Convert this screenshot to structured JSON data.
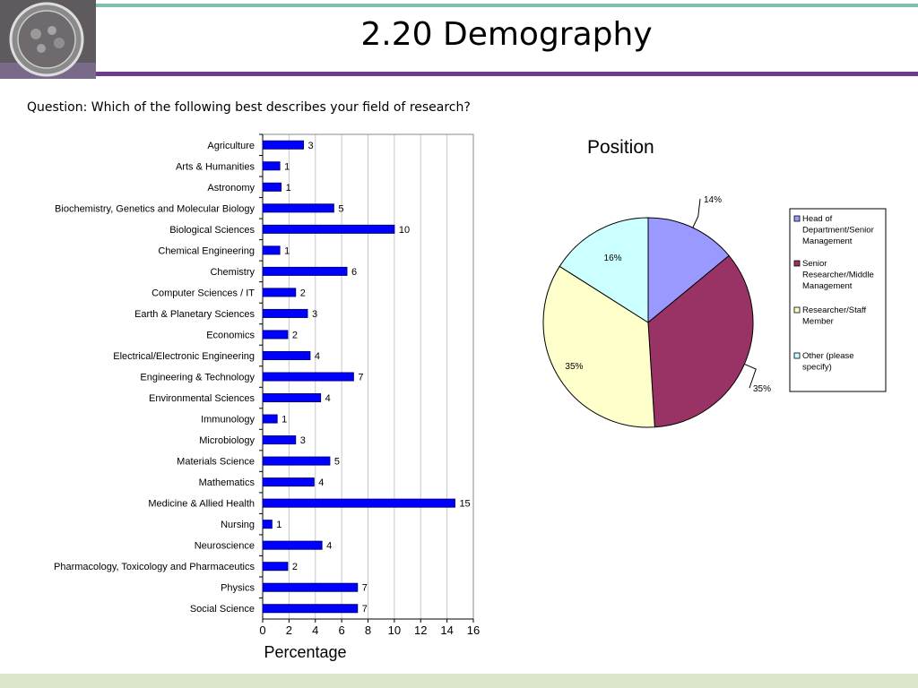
{
  "slide": {
    "title": "2.20 Demography",
    "question": "Question: Which of the following best describes your field of research?"
  },
  "chart_data": [
    {
      "type": "bar",
      "orientation": "horizontal",
      "categories": [
        "Agriculture",
        "Arts & Humanities",
        "Astronomy",
        "Biochemistry, Genetics and Molecular Biology",
        "Biological Sciences",
        "Chemical Engineering",
        "Chemistry",
        "Computer Sciences / IT",
        "Earth & Planetary Sciences",
        "Economics",
        "Electrical/Electronic Engineering",
        "Engineering & Technology",
        "Environmental Sciences",
        "Immunology",
        "Microbiology",
        "Materials Science",
        "Mathematics",
        "Medicine & Allied Health",
        "Nursing",
        "Neuroscience",
        "Pharmacology, Toxicology and Pharmaceutics",
        "Physics",
        "Social Science"
      ],
      "values": [
        3.1,
        1.3,
        1.4,
        5.4,
        10,
        1.3,
        6.4,
        2.5,
        3.4,
        1.9,
        3.6,
        6.9,
        4.4,
        1.1,
        2.5,
        5.1,
        3.9,
        14.6,
        0.7,
        4.5,
        1.9,
        7.2,
        7.2
      ],
      "data_labels": [
        "3",
        "1",
        "1",
        "5",
        "10",
        "1",
        "6",
        "2",
        "3",
        "2",
        "4",
        "7",
        "4",
        "1",
        "3",
        "5",
        "4",
        "15",
        "1",
        "4",
        "2",
        "7",
        "7"
      ],
      "xlabel": "Percentage",
      "xlim": [
        0,
        16
      ],
      "xticks": [
        "0",
        "2",
        "4",
        "6",
        "8",
        "10",
        "12",
        "14",
        "16"
      ],
      "grid": true,
      "colors": {
        "bar": "#0000ff",
        "bar_stroke": "#000080",
        "grid": "#c8c8c8"
      }
    },
    {
      "type": "pie",
      "title": "Position",
      "slices": [
        {
          "label": "Head of Department/Senior Management",
          "legend_lines": [
            "Head of",
            "Department/Senior",
            "Management"
          ],
          "value": 14,
          "value_label": "14%",
          "color": "#9999ff"
        },
        {
          "label": "Senior Researcher/Middle Management",
          "legend_lines": [
            "Senior",
            "Researcher/Middle",
            "Management"
          ],
          "value": 35,
          "value_label": "35%",
          "color": "#993366"
        },
        {
          "label": "Researcher/Staff Member",
          "legend_lines": [
            "Researcher/Staff",
            "Member"
          ],
          "value": 35,
          "value_label": "35%",
          "color": "#ffffcc"
        },
        {
          "label": "Other (please specify)",
          "legend_lines": [
            "Other (please",
            "specify)"
          ],
          "value": 16,
          "value_label": "16%",
          "color": "#ccffff"
        }
      ],
      "legend": "right"
    }
  ]
}
